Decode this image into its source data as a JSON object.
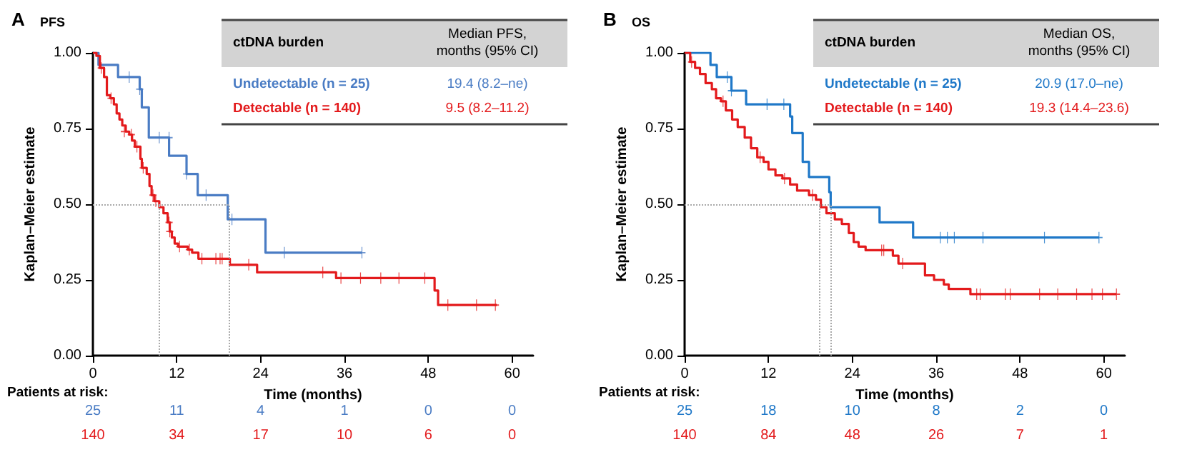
{
  "chart_data": [
    {
      "type": "step",
      "title": "A",
      "subtitle": "PFS",
      "xlabel": "Time (months)",
      "ylabel": "Kaplan–Meier estimate",
      "legend_title": "ctDNA burden",
      "legend": "top right",
      "grid": false,
      "marker": "none",
      "line_style": "solid",
      "xlim": [
        0,
        63
      ],
      "xticks": [
        0,
        12,
        24,
        36,
        48,
        60
      ],
      "ylim": [
        0,
        1
      ],
      "yticks": [
        {
          "value": 0,
          "label": "0.00"
        },
        {
          "value": 0.25,
          "label": "0.25"
        },
        {
          "value": 0.5,
          "label": "0.50"
        },
        {
          "value": 0.75,
          "label": "0.75"
        },
        {
          "value": 1,
          "label": "1.00"
        }
      ],
      "series": [
        {
          "name": "Undetectable (n = 25)",
          "color": "#4a7cc4",
          "x": [
            0,
            0.8,
            3.6,
            6.7,
            7.0,
            8.0,
            10.9,
            13.4,
            15.0,
            19.3,
            24.7,
            38.5
          ],
          "values": [
            1,
            0.96,
            0.92,
            0.88,
            0.82,
            0.72,
            0.66,
            0.6,
            0.53,
            0.45,
            0.34,
            0.34
          ]
        },
        {
          "name": "Detectable (n = 140)",
          "color": "#e31a1c",
          "x": [
            0,
            0.5,
            1.0,
            1.6,
            2.0,
            2.5,
            3.0,
            3.4,
            3.8,
            4.2,
            4.7,
            5.2,
            5.6,
            6.0,
            6.8,
            7.0,
            7.7,
            8.1,
            8.4,
            8.8,
            9.5,
            10.1,
            10.7,
            11.0,
            11.3,
            11.7,
            12.2,
            13.6,
            14.2,
            15.1,
            19.6,
            23.5,
            34.8,
            48.9,
            49.4,
            57.8
          ],
          "values": [
            1,
            0.99,
            0.95,
            0.92,
            0.86,
            0.85,
            0.83,
            0.8,
            0.78,
            0.76,
            0.74,
            0.73,
            0.71,
            0.69,
            0.65,
            0.62,
            0.6,
            0.56,
            0.53,
            0.51,
            0.49,
            0.47,
            0.44,
            0.41,
            0.39,
            0.37,
            0.36,
            0.35,
            0.34,
            0.32,
            0.3,
            0.275,
            0.256,
            0.215,
            0.167,
            0.167
          ]
        },
        {
          "type": "scatter",
          "marker": "cross",
          "color": "#4a7cc4",
          "x": [
            5.2,
            6.7,
            9.5,
            10.9,
            13.4,
            16.2,
            19.9,
            27.4,
            38.5
          ],
          "values": [
            0.92,
            0.88,
            0.72,
            0.72,
            0.6,
            0.53,
            0.45,
            0.34,
            0.34
          ]
        },
        {
          "type": "scatter",
          "marker": "cross",
          "color": "#e31a1c",
          "x": [
            1.2,
            2.6,
            4.5,
            5.5,
            6.3,
            7.2,
            8.6,
            9.0,
            10.9,
            11.0,
            12.4,
            13.8,
            15.6,
            17.6,
            18.2,
            18.5,
            22.3,
            32.9,
            35.5,
            38.3,
            41.2,
            43.8,
            47.5,
            50.8,
            54.9,
            57.6
          ],
          "values": [
            0.95,
            0.85,
            0.74,
            0.73,
            0.69,
            0.62,
            0.53,
            0.51,
            0.44,
            0.41,
            0.36,
            0.35,
            0.32,
            0.32,
            0.32,
            0.32,
            0.3,
            0.275,
            0.256,
            0.256,
            0.256,
            0.256,
            0.256,
            0.167,
            0.167,
            0.167
          ]
        }
      ],
      "ref_lines": [
        {
          "axis": "y",
          "value": 0.5,
          "color": "#aaaaaa",
          "line_style": "dotted"
        },
        {
          "axis": "x",
          "value": 9.5,
          "color": "#aaaaaa",
          "line_style": "dotted"
        },
        {
          "axis": "x",
          "value": 19.4,
          "color": "#aaaaaa",
          "line_style": "dotted"
        }
      ],
      "annotations": [
        "Median PFS,\nmonths (95% CI)",
        "19.4 (8.2–ne)",
        "9.5 (8.2–11.2)",
        "Patients at risk:",
        "25 11 4 1 0 0",
        "140 34 17 10 6 0"
      ]
    },
    {
      "type": "step",
      "title": "B",
      "subtitle": "OS",
      "xlabel": "Time (months)",
      "ylabel": "Kaplan–Meier estimate",
      "legend_title": "ctDNA burden",
      "legend": "top right",
      "grid": false,
      "marker": "none",
      "line_style": "solid",
      "xlim": [
        0,
        63
      ],
      "xticks": [
        0,
        12,
        24,
        36,
        48,
        60
      ],
      "ylim": [
        0,
        1
      ],
      "yticks": [
        {
          "value": 0,
          "label": "0.00"
        },
        {
          "value": 0.25,
          "label": "0.25"
        },
        {
          "value": 0.5,
          "label": "0.50"
        },
        {
          "value": 0.75,
          "label": "0.75"
        },
        {
          "value": 1,
          "label": "1.00"
        }
      ],
      "series": [
        {
          "name": "Undetectable (n = 25)",
          "color": "#1f78c8",
          "x": [
            0,
            3.7,
            4.6,
            6.7,
            8.8,
            15.1,
            15.4,
            16.9,
            17.8,
            20.7,
            20.9,
            27.9,
            32.7,
            59.3
          ],
          "values": [
            1,
            0.96,
            0.92,
            0.875,
            0.83,
            0.79,
            0.735,
            0.64,
            0.59,
            0.54,
            0.49,
            0.44,
            0.39,
            0.39
          ]
        },
        {
          "name": "Detectable (n = 140)",
          "color": "#e31a1c",
          "x": [
            0,
            0.8,
            1.5,
            2.2,
            3.0,
            3.9,
            4.5,
            5.2,
            5.9,
            6.8,
            7.6,
            8.6,
            9.5,
            10.4,
            11.3,
            12.0,
            13.0,
            14.0,
            15.1,
            16.1,
            17.8,
            18.8,
            19.5,
            20.3,
            21.5,
            22.5,
            23.5,
            24.2,
            24.9,
            25.9,
            29.8,
            30.6,
            34.4,
            35.7,
            37.1,
            37.8,
            40.9,
            61.8
          ],
          "values": [
            1,
            0.97,
            0.95,
            0.93,
            0.9,
            0.88,
            0.85,
            0.84,
            0.81,
            0.78,
            0.755,
            0.72,
            0.685,
            0.655,
            0.64,
            0.615,
            0.595,
            0.585,
            0.565,
            0.545,
            0.53,
            0.515,
            0.49,
            0.47,
            0.45,
            0.435,
            0.405,
            0.375,
            0.36,
            0.348,
            0.33,
            0.304,
            0.265,
            0.25,
            0.235,
            0.22,
            0.203,
            0.203
          ]
        },
        {
          "type": "scatter",
          "marker": "cross",
          "color": "#1f78c8",
          "x": [
            6.1,
            6.7,
            11.8,
            14.2,
            36.6,
            37.6,
            38.6,
            42.7,
            51.5,
            59.3
          ],
          "values": [
            0.92,
            0.875,
            0.83,
            0.83,
            0.39,
            0.39,
            0.39,
            0.39,
            0.39,
            0.39
          ]
        },
        {
          "type": "scatter",
          "marker": "cross",
          "color": "#e31a1c",
          "x": [
            1.0,
            5.5,
            10.8,
            14.3,
            18.3,
            28.2,
            28.5,
            31.2,
            41.8,
            42.3,
            45.9,
            46.6,
            50.8,
            53.4,
            56.1,
            58.3,
            59.8,
            61.8
          ],
          "values": [
            0.97,
            0.84,
            0.655,
            0.585,
            0.53,
            0.348,
            0.348,
            0.304,
            0.203,
            0.203,
            0.203,
            0.203,
            0.203,
            0.203,
            0.203,
            0.203,
            0.203,
            0.203
          ]
        }
      ],
      "ref_lines": [
        {
          "axis": "y",
          "value": 0.5,
          "color": "#aaaaaa",
          "line_style": "dotted"
        },
        {
          "axis": "x",
          "value": 19.3,
          "color": "#aaaaaa",
          "line_style": "dotted"
        },
        {
          "axis": "x",
          "value": 20.9,
          "color": "#aaaaaa",
          "line_style": "dotted"
        }
      ],
      "annotations": [
        "Median OS,\nmonths (95% CI)",
        "20.9 (17.0–ne)",
        "19.3 (14.4–23.6)",
        "Patients at risk:",
        "25 18 10 8 2 0",
        "140 84 48 26 7 1"
      ]
    }
  ]
}
